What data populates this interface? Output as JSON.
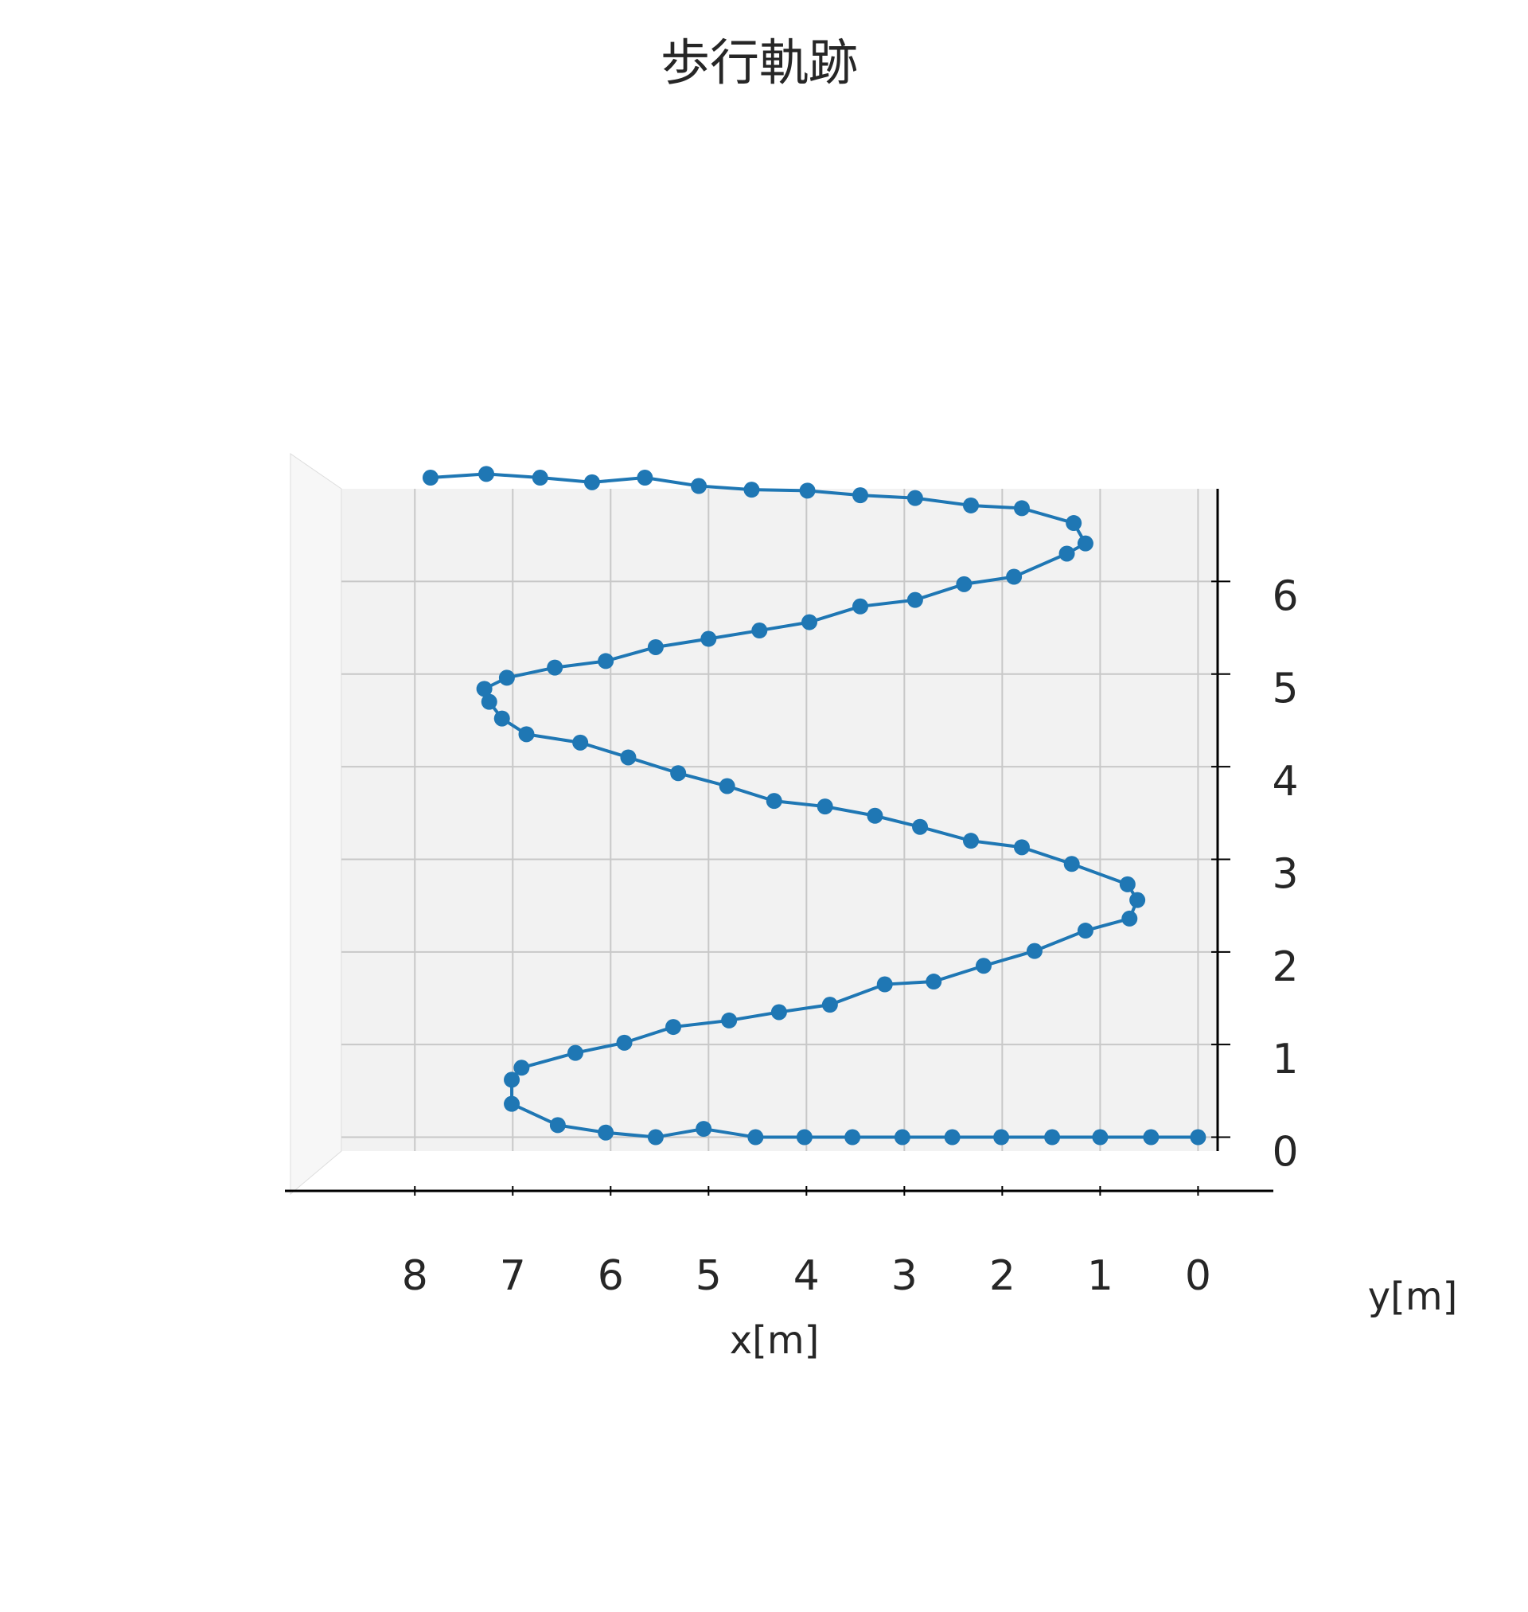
{
  "chart_data": {
    "type": "line",
    "title": "歩行軌跡",
    "x_label": "x[m]",
    "y_label": "y[m]",
    "x": [
      0.0,
      0.48,
      1.0,
      1.49,
      2.01,
      2.51,
      3.02,
      3.53,
      4.02,
      4.52,
      5.05,
      5.54,
      6.05,
      6.54,
      7.01,
      7.01,
      6.91,
      6.36,
      5.86,
      5.36,
      4.79,
      4.28,
      3.76,
      3.2,
      2.7,
      2.19,
      1.67,
      1.15,
      0.7,
      0.62,
      0.72,
      1.29,
      1.8,
      2.32,
      2.84,
      3.3,
      3.81,
      4.33,
      4.81,
      5.31,
      5.82,
      6.31,
      6.86,
      7.11,
      7.24,
      7.29,
      7.06,
      6.57,
      6.05,
      5.54,
      5.0,
      4.48,
      3.97,
      3.45,
      2.89,
      2.39,
      1.88,
      1.34,
      1.15,
      1.27,
      1.8,
      2.32,
      2.89,
      3.45,
      3.99,
      4.56,
      5.1,
      5.65,
      6.19,
      6.72,
      7.27,
      7.84
    ],
    "series": [
      {
        "color": "#1f77b4",
        "values": [
          0,
          0,
          0,
          0,
          0,
          0,
          0,
          0,
          0,
          0,
          0.09,
          0,
          0.05,
          0.13,
          0.36,
          0.62,
          0.75,
          0.91,
          1.02,
          1.19,
          1.26,
          1.35,
          1.43,
          1.65,
          1.68,
          1.85,
          2.01,
          2.23,
          2.36,
          2.56,
          2.73,
          2.95,
          3.13,
          3.2,
          3.35,
          3.47,
          3.57,
          3.63,
          3.79,
          3.93,
          4.1,
          4.26,
          4.35,
          4.52,
          4.7,
          4.84,
          4.96,
          5.07,
          5.14,
          5.29,
          5.38,
          5.47,
          5.56,
          5.73,
          5.8,
          5.97,
          6.05,
          6.3,
          6.41,
          6.63,
          6.79,
          6.82,
          6.9,
          6.93,
          6.98,
          6.99,
          7.03,
          7.12,
          7.07,
          7.12,
          7.16,
          7.12
        ]
      }
    ],
    "xlim": [
      8.75,
      -0.2
    ],
    "xticks": [
      8,
      7,
      6,
      5,
      4,
      3,
      2,
      1,
      0
    ],
    "ylim": [
      -0.15,
      7.0
    ],
    "yticks": [
      0,
      1,
      2,
      3,
      4,
      5,
      6
    ],
    "grid": true
  }
}
